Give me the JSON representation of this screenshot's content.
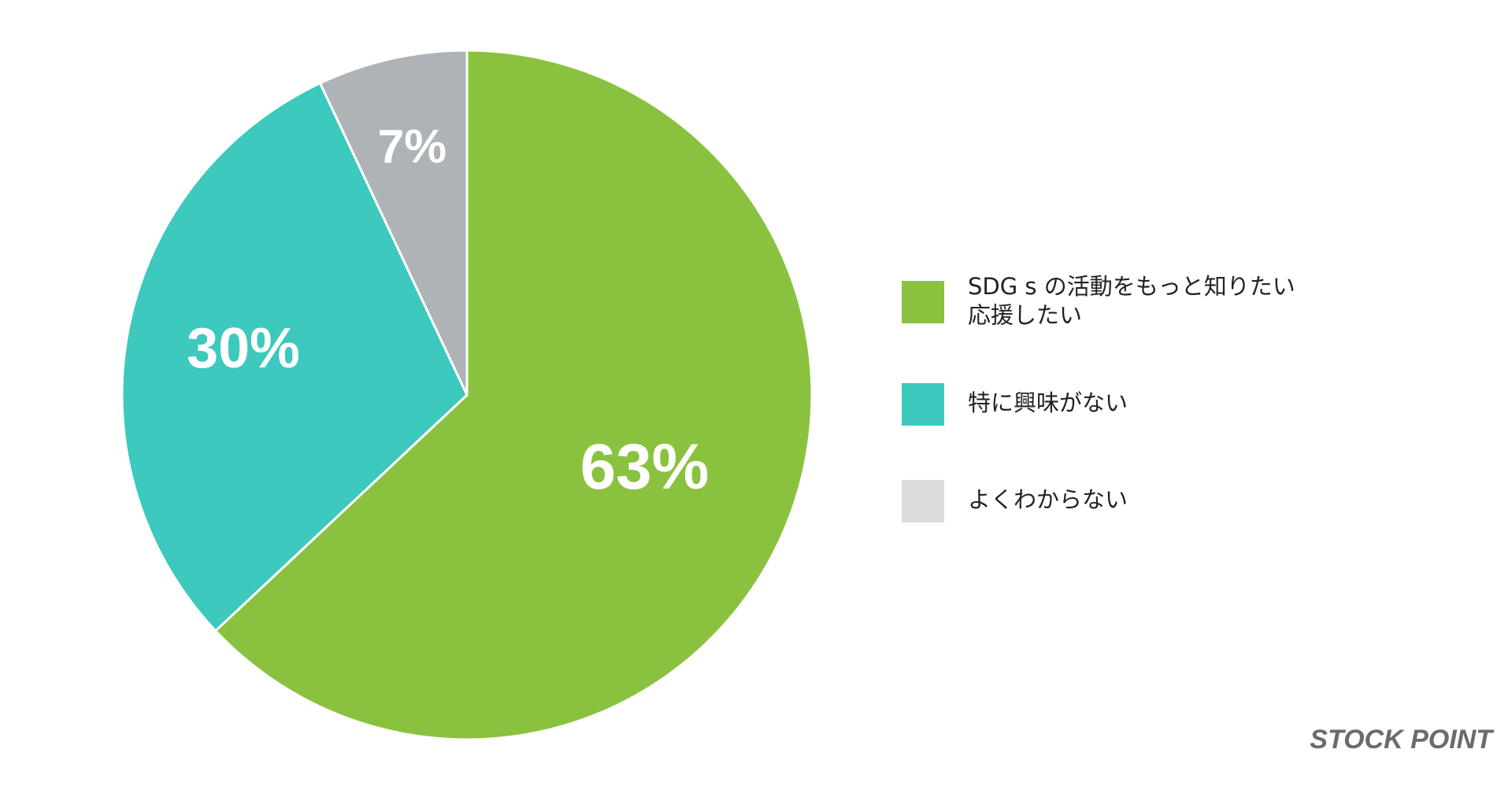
{
  "chart_data": {
    "type": "pie",
    "categories": [
      "SDG s の活動をもっと知りたい\n応援したい",
      "特に興味がない",
      "よくわからない"
    ],
    "values": [
      63,
      30,
      7
    ],
    "value_labels": [
      "63%",
      "30%",
      "7%"
    ],
    "colors": [
      "#8ac23f",
      "#3dc9bd",
      "#adb3b6"
    ],
    "legend_colors": [
      "#8ac23f",
      "#3dc9bd",
      "#dcdcdc"
    ],
    "legend": "right",
    "watermark": "STOCK POINT"
  }
}
